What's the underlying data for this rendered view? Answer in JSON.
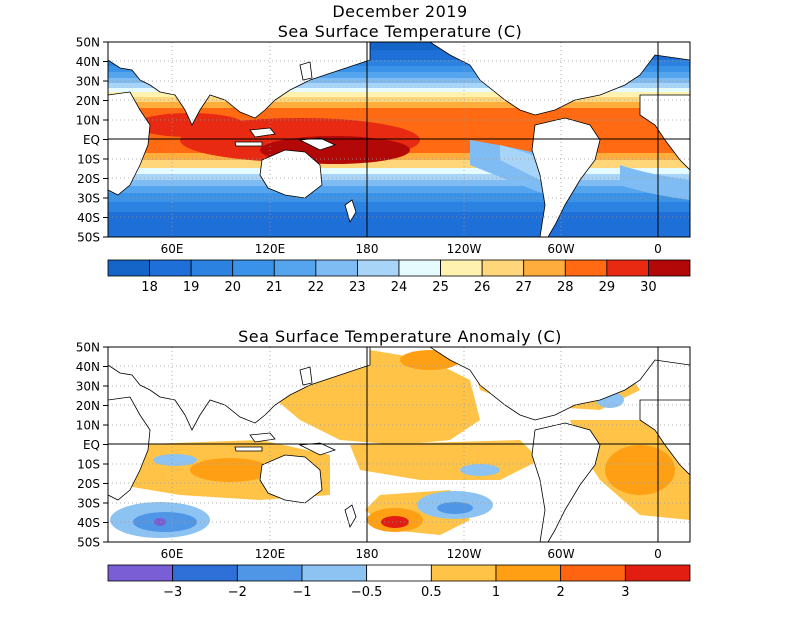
{
  "top_panel": {
    "title_line1": "December 2019",
    "title_line2": "Sea Surface Temperature (C)",
    "colorbar": {
      "labels": [
        "18",
        "19",
        "20",
        "21",
        "22",
        "23",
        "24",
        "25",
        "26",
        "27",
        "28",
        "29",
        "30"
      ],
      "colors": [
        "#1565c8",
        "#1e6fd8",
        "#2b82e0",
        "#3a93e8",
        "#55a5ee",
        "#7ebcf3",
        "#a8d4f7",
        "#e6fbfd",
        "#fff2b0",
        "#ffd77a",
        "#ffad3d",
        "#ff6a12",
        "#e82a12",
        "#b30808"
      ]
    }
  },
  "bottom_panel": {
    "title": "Sea Surface Temperature Anomaly (C)",
    "colorbar": {
      "labels": [
        "−3",
        "−2",
        "−1",
        "−0.5",
        "0.5",
        "1",
        "2",
        "3"
      ],
      "colors": [
        "#7a5ed6",
        "#2f6fd8",
        "#4f97e6",
        "#8cc3f3",
        "#ffffff",
        "#ffc447",
        "#ff9f14",
        "#ff6411",
        "#e21e12"
      ]
    }
  },
  "axes": {
    "y_labels": [
      "50N",
      "40N",
      "30N",
      "20N",
      "10N",
      "EQ",
      "10S",
      "20S",
      "30S",
      "40S",
      "50S"
    ],
    "x_labels": [
      "60E",
      "120E",
      "180",
      "120W",
      "60W",
      "0"
    ]
  },
  "map_colors": {
    "land": "#ffffff",
    "coast": "#000000",
    "grid": "#9a9a9a"
  }
}
